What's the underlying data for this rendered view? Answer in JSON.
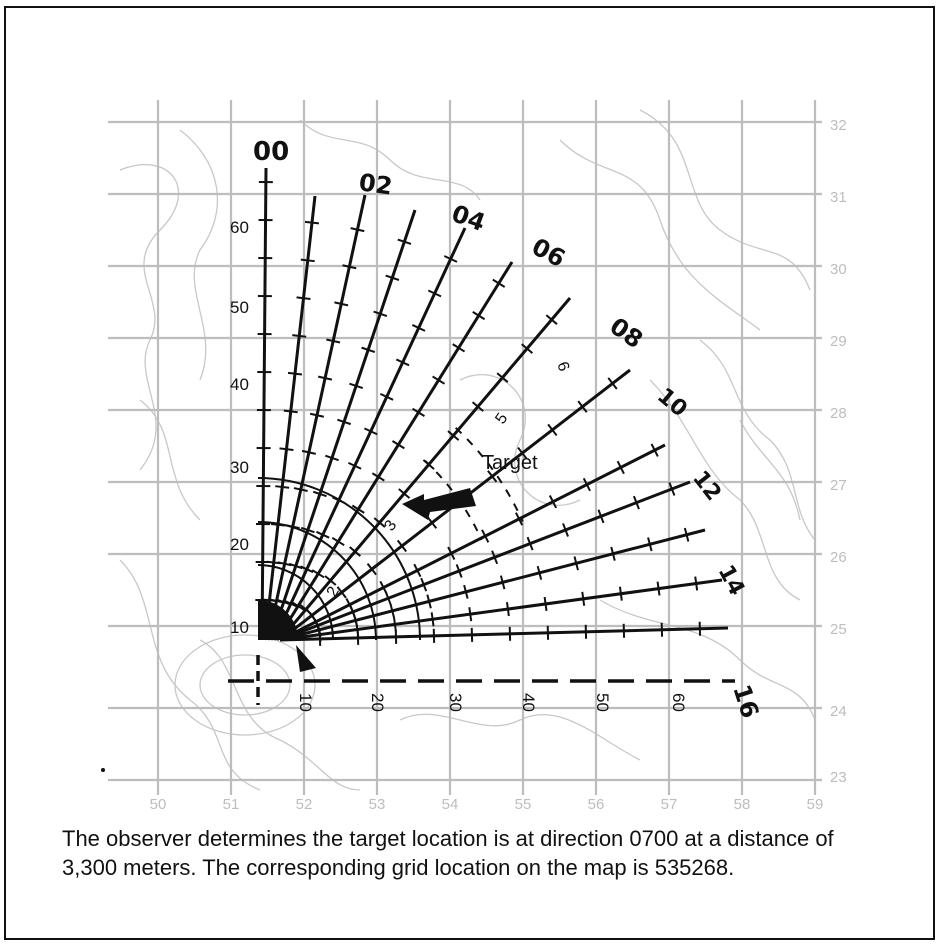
{
  "grid": {
    "eastings": [
      "50",
      "51",
      "52",
      "53",
      "54",
      "55",
      "56",
      "57",
      "58",
      "59"
    ],
    "northings": [
      "32",
      "31",
      "30",
      "29",
      "28",
      "27",
      "26",
      "25",
      "24",
      "23"
    ]
  },
  "directions": [
    "00",
    "02",
    "04",
    "06",
    "08",
    "10",
    "12",
    "14",
    "16"
  ],
  "vertical_scale": [
    "60",
    "50",
    "40",
    "30",
    "20",
    "10"
  ],
  "horizontal_scale": [
    "10",
    "20",
    "30",
    "40",
    "50",
    "60"
  ],
  "range_arcs": [
    "2",
    "3",
    "5",
    "6"
  ],
  "target_label": "Target",
  "caption": "The observer determines the target location is at direction 0700 at a distance of 3,300 meters. The corresponding grid location on the map is 535268.",
  "colors": {
    "grid": "#bdbdbd",
    "contour": "#c8c8c8",
    "ink": "#111111"
  }
}
